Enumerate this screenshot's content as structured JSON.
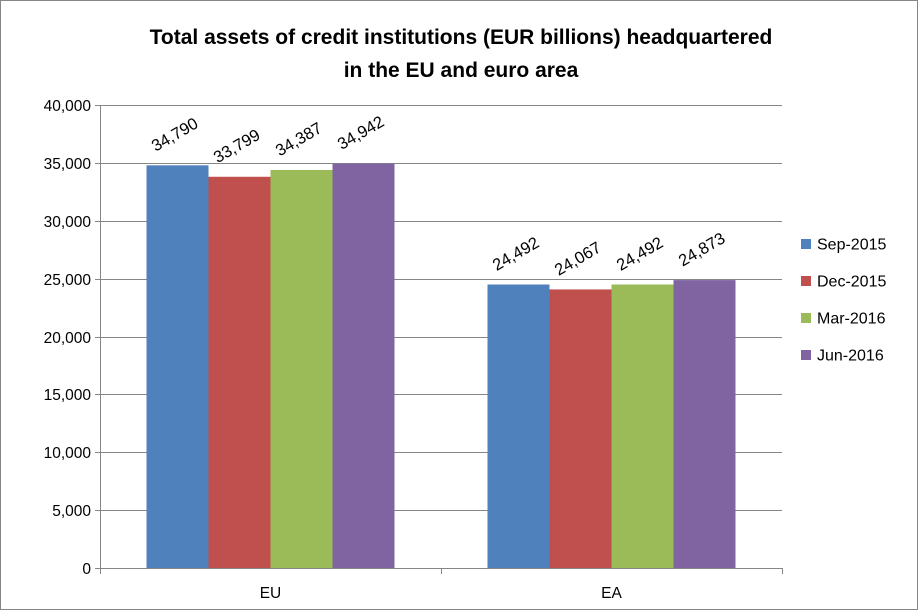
{
  "chart_data": {
    "type": "bar",
    "title_lines": [
      "Total assets of credit institutions (EUR billions) headquartered",
      "in the EU and euro area"
    ],
    "categories": [
      "EU",
      "EA"
    ],
    "series": [
      {
        "name": "Sep-2015",
        "color": "#4F81BD",
        "values": [
          34790,
          24492
        ],
        "labels": [
          "34,790",
          "24,492"
        ]
      },
      {
        "name": "Dec-2015",
        "color": "#C0504D",
        "values": [
          33799,
          24067
        ],
        "labels": [
          "33,799",
          "24,067"
        ]
      },
      {
        "name": "Mar-2016",
        "color": "#9BBB59",
        "values": [
          34387,
          24492
        ],
        "labels": [
          "34,387",
          "24,492"
        ]
      },
      {
        "name": "Jun-2016",
        "color": "#8064A2",
        "values": [
          34942,
          24873
        ],
        "labels": [
          "34,942",
          "24,873"
        ]
      }
    ],
    "ylim": [
      0,
      40000
    ],
    "yticks": [
      0,
      5000,
      10000,
      15000,
      20000,
      25000,
      30000,
      35000,
      40000
    ],
    "ytick_labels": [
      "0",
      "5,000",
      "10,000",
      "15,000",
      "20,000",
      "25,000",
      "30,000",
      "35,000",
      "40,000"
    ],
    "grid": true,
    "legend_position": "right"
  }
}
